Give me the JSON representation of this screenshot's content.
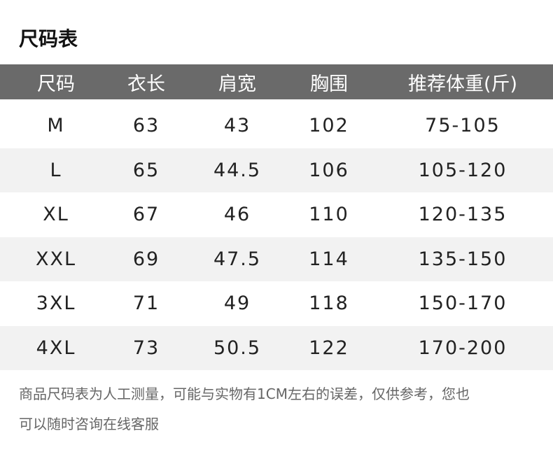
{
  "title": "尺码表",
  "headers": [
    "尺码",
    "衣长",
    "肩宽",
    "胸围",
    "推荐体重(斤)"
  ],
  "rows": [
    [
      "M",
      "63",
      "43",
      "102",
      "75-105"
    ],
    [
      "L",
      "65",
      "44.5",
      "106",
      "105-120"
    ],
    [
      "XL",
      "67",
      "46",
      "110",
      "120-135"
    ],
    [
      "XXL",
      "69",
      "47.5",
      "114",
      "135-150"
    ],
    [
      "3XL",
      "71",
      "49",
      "118",
      "150-170"
    ],
    [
      "4XL",
      "73",
      "50.5",
      "122",
      "170-200"
    ]
  ],
  "note": [
    "商品尺码表为人工测量，可能与实物有1CM左右的误差，仅供参考，您也",
    "可以随时咨询在线客服"
  ],
  "colors": {
    "header_bg": "#6a6a6a",
    "alt_row": "#f2f2f2"
  }
}
